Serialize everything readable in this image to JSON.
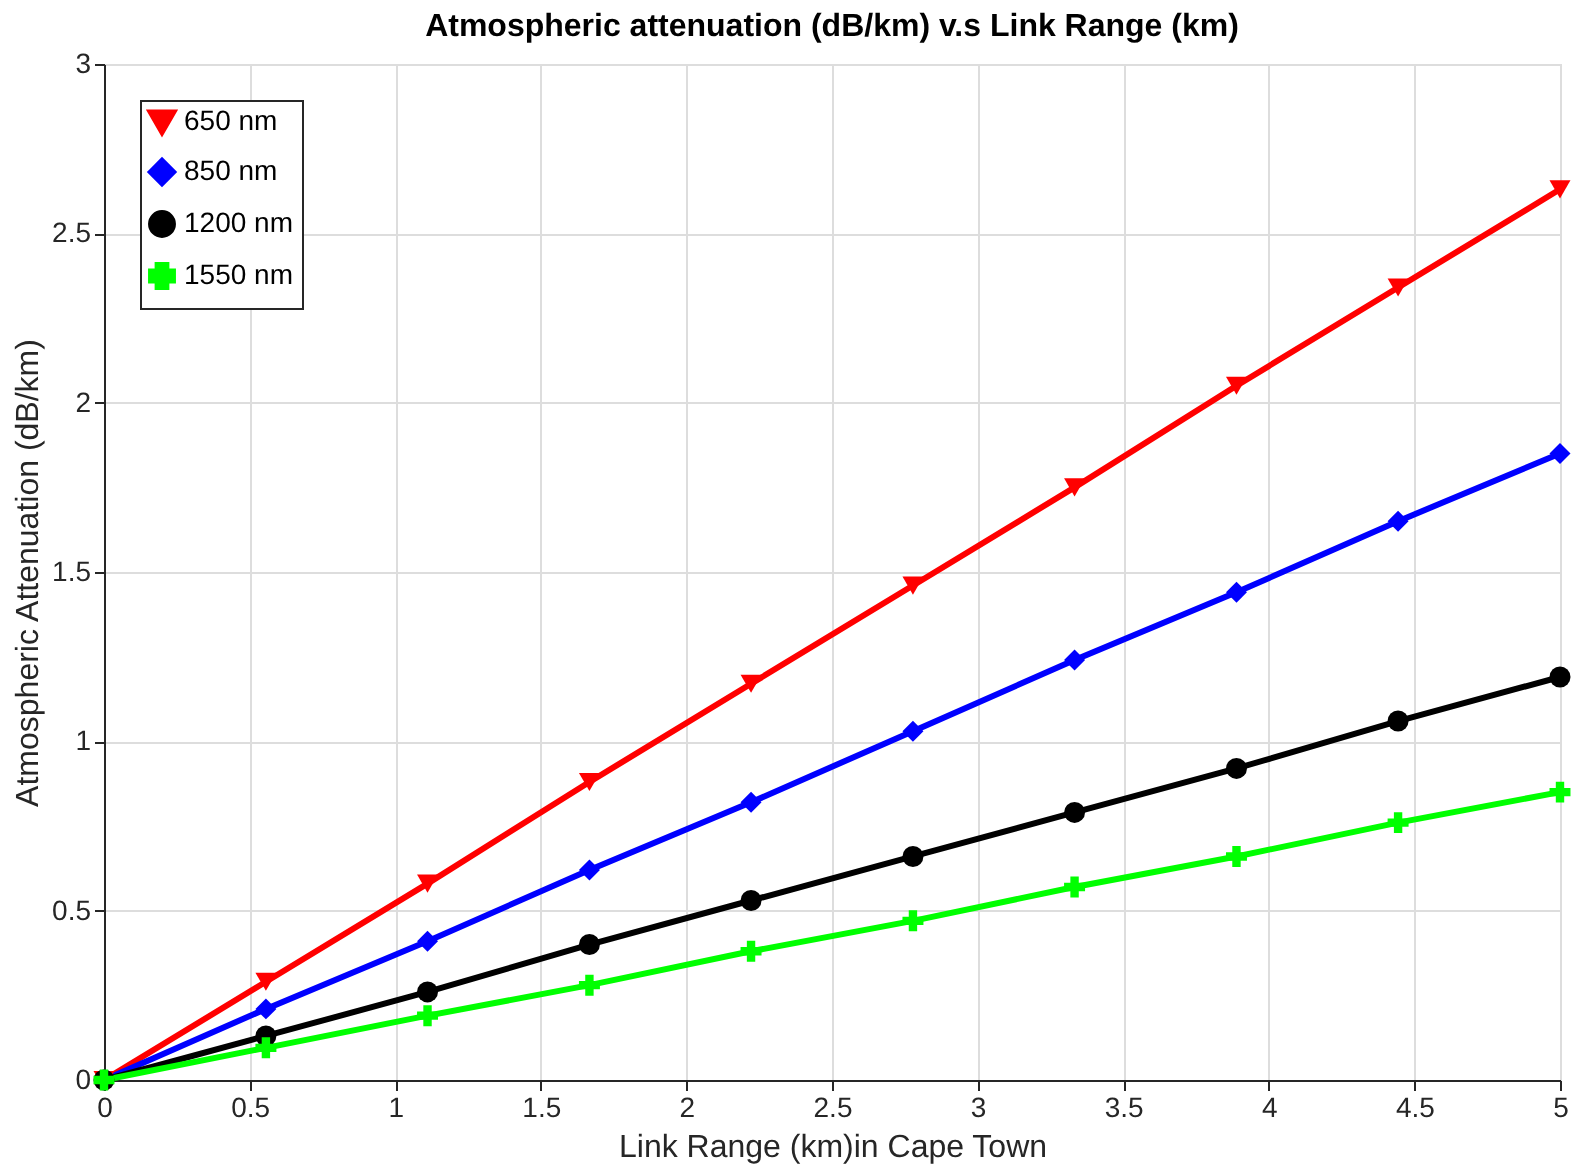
{
  "chart_data": {
    "type": "line",
    "title": "Atmospheric attenuation (dB/km) v.s Link Range (km)",
    "xlabel": "Link Range (km)in Cape Town",
    "ylabel": "Atmospheric Attenuation (dB/km)",
    "x": [
      0,
      0.556,
      1.111,
      1.667,
      2.222,
      2.778,
      3.333,
      3.889,
      4.444,
      5
    ],
    "series": [
      {
        "name": "650 nm",
        "color": "#ff0000",
        "marker": "triangle",
        "values": [
          0,
          0.29,
          0.58,
          0.88,
          1.17,
          1.46,
          1.75,
          2.05,
          2.34,
          2.63
        ]
      },
      {
        "name": "850 nm",
        "color": "#0000ff",
        "marker": "diamond",
        "values": [
          0,
          0.21,
          0.41,
          0.62,
          0.82,
          1.03,
          1.24,
          1.44,
          1.65,
          1.85
        ]
      },
      {
        "name": "1200 nm",
        "color": "#000000",
        "marker": "circle",
        "values": [
          0,
          0.13,
          0.26,
          0.4,
          0.53,
          0.66,
          0.79,
          0.92,
          1.06,
          1.19
        ]
      },
      {
        "name": "1550 nm",
        "color": "#00ff00",
        "marker": "cross",
        "values": [
          0,
          0.095,
          0.19,
          0.28,
          0.38,
          0.47,
          0.57,
          0.66,
          0.76,
          0.85
        ]
      }
    ],
    "xlim": [
      0,
      5
    ],
    "xticks": [
      0,
      0.5,
      1,
      1.5,
      2,
      2.5,
      3,
      3.5,
      4,
      4.5,
      5
    ],
    "ylim": [
      0,
      3
    ],
    "yticks": [
      0,
      0.5,
      1,
      1.5,
      2,
      2.5,
      3
    ],
    "grid": true,
    "legend": "top left",
    "line_style": "solid"
  }
}
